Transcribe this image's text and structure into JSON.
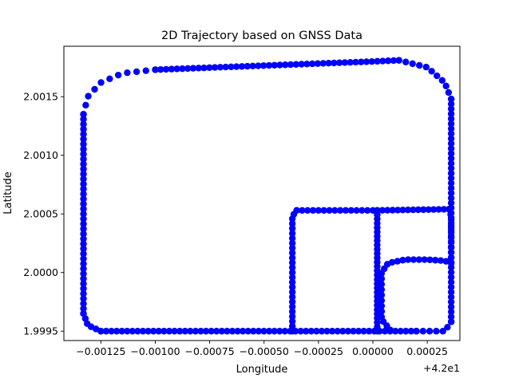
{
  "chart_data": {
    "type": "scatter",
    "title": "2D Trajectory based on GNSS Data",
    "xlabel": "Longitude",
    "ylabel": "Latitude",
    "x_offset_label": "+4.2e1",
    "x_ticks": [
      {
        "value": -0.00125,
        "label": "−0.00125"
      },
      {
        "value": -0.001,
        "label": "−0.00100"
      },
      {
        "value": -0.00075,
        "label": "−0.00075"
      },
      {
        "value": -0.0005,
        "label": "−0.00050"
      },
      {
        "value": -0.00025,
        "label": "−0.00025"
      },
      {
        "value": 0.0,
        "label": "0.00000"
      },
      {
        "value": 0.00025,
        "label": "0.00025"
      }
    ],
    "y_ticks": [
      {
        "value": 1.9995,
        "label": "1.9995"
      },
      {
        "value": 2.0,
        "label": "2.0000"
      },
      {
        "value": 2.0005,
        "label": "2.0005"
      },
      {
        "value": 2.001,
        "label": "2.0010"
      },
      {
        "value": 2.0015,
        "label": "2.0015"
      }
    ],
    "xlim": [
      -0.00142,
      0.0004
    ],
    "ylim": [
      1.99942,
      2.00193
    ],
    "grid": false,
    "marker_color": "#0000ff",
    "segments": [
      {
        "points": [
          [
            -0.00133,
            1.99965
          ],
          [
            -0.00133,
            2.00135
          ]
        ],
        "n": 40
      },
      {
        "points": [
          [
            -0.00133,
            2.00135
          ],
          [
            -0.00131,
            2.0015
          ],
          [
            -0.00125,
            2.00162
          ],
          [
            -0.00115,
            2.0017
          ],
          [
            -0.001,
            2.00173
          ]
        ],
        "n": 10
      },
      {
        "points": [
          [
            -0.001,
            2.00173
          ],
          [
            0.0,
            2.0018
          ],
          [
            0.00012,
            2.00181
          ]
        ],
        "n": 45
      },
      {
        "points": [
          [
            0.00012,
            2.00181
          ],
          [
            0.00025,
            2.00175
          ],
          [
            0.00033,
            2.00162
          ],
          [
            0.00036,
            2.00148
          ]
        ],
        "n": 10
      },
      {
        "points": [
          [
            0.00036,
            2.00148
          ],
          [
            0.00036,
            1.99958
          ]
        ],
        "n": 45
      },
      {
        "points": [
          [
            0.00036,
            1.99958
          ],
          [
            0.00033,
            1.9995
          ],
          [
            0.0002,
            1.9995
          ]
        ],
        "n": 6
      },
      {
        "points": [
          [
            0.0002,
            1.9995
          ],
          [
            -0.00125,
            1.9995
          ]
        ],
        "n": 60
      },
      {
        "points": [
          [
            -0.00125,
            1.9995
          ],
          [
            -0.00131,
            1.99955
          ],
          [
            -0.00133,
            1.99965
          ]
        ],
        "n": 5
      },
      {
        "points": [
          [
            -0.00037,
            1.9995
          ],
          [
            -0.00037,
            2.00048
          ],
          [
            -0.00035,
            2.00053
          ]
        ],
        "n": 25
      },
      {
        "points": [
          [
            -0.00035,
            2.00053
          ],
          [
            0.0,
            2.00053
          ]
        ],
        "n": 14
      },
      {
        "points": [
          [
            2e-05,
            1.9995
          ],
          [
            2e-05,
            2.00053
          ]
        ],
        "n": 28
      },
      {
        "points": [
          [
            2e-05,
            2.00053
          ],
          [
            0.00035,
            2.00054
          ]
        ],
        "n": 14
      },
      {
        "points": [
          [
            0.00035,
            2.00054
          ],
          [
            0.00036,
            2.00048
          ],
          [
            0.00036,
            2.00008
          ]
        ],
        "n": 10
      },
      {
        "points": [
          [
            0.00036,
            2.00008
          ],
          [
            0.00033,
            2.0001
          ],
          [
            0.00025,
            2.00011
          ],
          [
            0.00015,
            2.00011
          ],
          [
            7e-05,
            2.00008
          ],
          [
            4e-05,
            2.0
          ],
          [
            4e-05,
            1.9996
          ],
          [
            8e-05,
            1.99951
          ]
        ],
        "n": 25
      }
    ]
  }
}
